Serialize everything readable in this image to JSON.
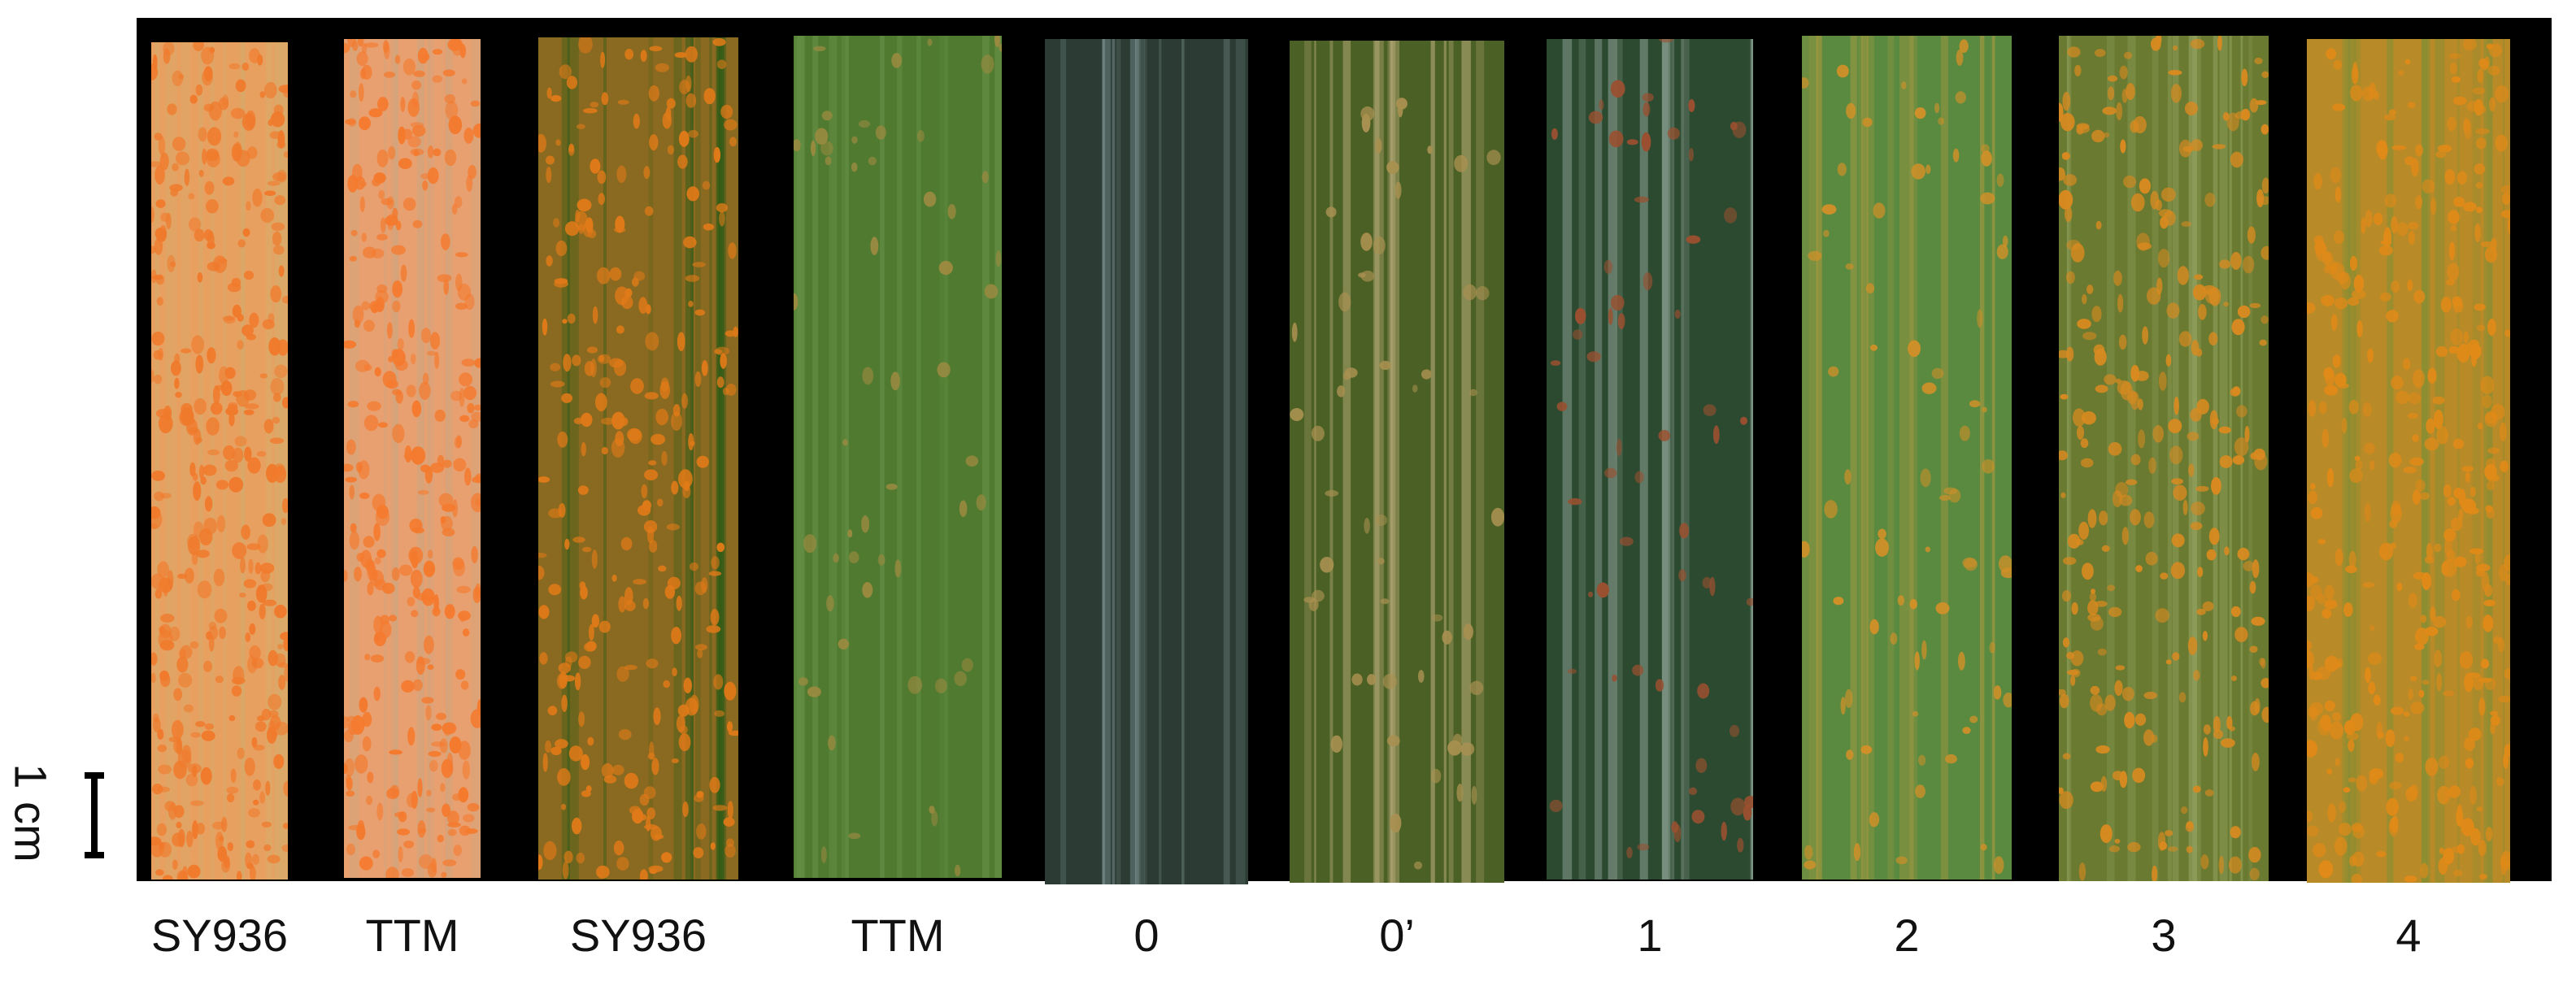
{
  "figure": {
    "scale_label": "1 cm",
    "leaves": [
      {
        "label": "SY936",
        "base": "#e8a060",
        "spot": "#f07a2c",
        "stripe": "#d0b070",
        "spots": 90
      },
      {
        "label": "TTM",
        "base": "#e8a070",
        "spot": "#f47a2e",
        "stripe": "#c8a884",
        "spots": 80
      },
      {
        "label": "SY936",
        "base": "#8a6a20",
        "spot": "#e07a18",
        "stripe": "#2a5a18",
        "spots": 70
      },
      {
        "label": "TTM",
        "base": "#4f7a30",
        "spot": "#9a8a40",
        "stripe": "#6f9a50",
        "spots": 14
      },
      {
        "label": "0",
        "base": "#2c3c34",
        "spot": "#3d4d44",
        "stripe": "#8aa0a0",
        "spots": 0
      },
      {
        "label": "0’",
        "base": "#4a6024",
        "spot": "#a89050",
        "stripe": "#d8c090",
        "spots": 14
      },
      {
        "label": "1",
        "base": "#2c4a30",
        "spot": "#9a5030",
        "stripe": "#a8b8b0",
        "spots": 16
      },
      {
        "label": "2",
        "base": "#5a8a40",
        "spot": "#d09028",
        "stripe": "#c8a040",
        "spots": 20
      },
      {
        "label": "3",
        "base": "#6a7a30",
        "spot": "#d88a20",
        "stripe": "#a0b070",
        "spots": 70
      },
      {
        "label": "4",
        "base": "#b88a28",
        "spot": "#e08a18",
        "stripe": "#7a9038",
        "spots": 90
      }
    ]
  }
}
